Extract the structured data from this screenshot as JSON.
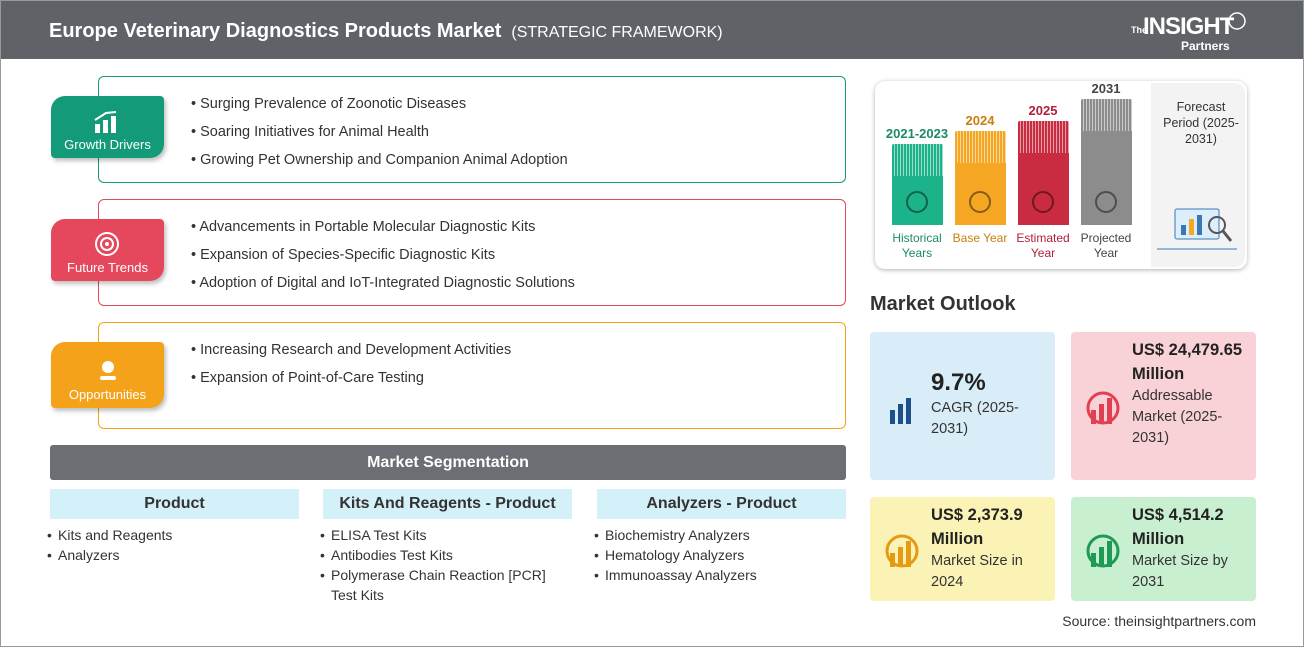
{
  "header": {
    "title": "Europe Veterinary Diagnostics Products Market",
    "subtitle": "(STRATEGIC FRAMEWORK)",
    "logo": {
      "prefix": "The",
      "brand": "INSIGHT",
      "suffix": "Partners"
    }
  },
  "framework": [
    {
      "label": "Growth Drivers",
      "items": [
        "Surging Prevalence of Zoonotic Diseases",
        "Soaring Initiatives for Animal Health",
        "Growing Pet Ownership and Companion Animal Adoption"
      ]
    },
    {
      "label": "Future Trends",
      "items": [
        "Advancements in Portable Molecular Diagnostic Kits",
        "Expansion of Species-Specific Diagnostic Kits",
        "Adoption of Digital and IoT-Integrated Diagnostic Solutions"
      ]
    },
    {
      "label": "Opportunities",
      "items": [
        "Increasing Research and Development Activities",
        "Expansion of Point-of-Care Testing"
      ]
    }
  ],
  "segmentation": {
    "title": "Market Segmentation",
    "columns": [
      {
        "heading": "Product",
        "items": [
          "Kits and Reagents",
          "Analyzers"
        ]
      },
      {
        "heading": "Kits And Reagents - Product",
        "items": [
          "ELISA Test Kits",
          "Antibodies Test Kits",
          "Polymerase Chain Reaction [PCR] Test Kits"
        ]
      },
      {
        "heading": "Analyzers - Product",
        "items": [
          "Biochemistry Analyzers",
          "Hematology Analyzers",
          "Immunoassay Analyzers"
        ]
      }
    ]
  },
  "timeline": {
    "periods": [
      {
        "year": "2021-2023",
        "label": "Historical Years"
      },
      {
        "year": "2024",
        "label": "Base Year"
      },
      {
        "year": "2025",
        "label": "Estimated Year"
      },
      {
        "year": "2031",
        "label": "Projected Year"
      }
    ],
    "forecast": "Forecast Period (2025-2031)"
  },
  "outlook": {
    "title": "Market Outlook",
    "cards": [
      {
        "value": "9.7%",
        "label": "CAGR (2025-2031)"
      },
      {
        "value": "US$ 24,479.65 Million",
        "label": "Addressable Market (2025-2031)"
      },
      {
        "value": "US$ 2,373.9 Million",
        "label": "Market Size in 2024"
      },
      {
        "value": "US$ 4,514.2 Million",
        "label": "Market Size by 2031"
      }
    ]
  },
  "source": "Source: theinsightpartners.com"
}
